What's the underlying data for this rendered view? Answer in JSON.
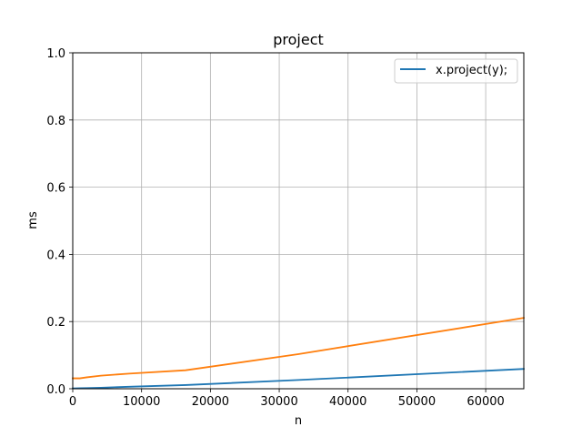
{
  "chart_data": {
    "type": "line",
    "title": "project",
    "xlabel": "n",
    "ylabel": "ms",
    "xlim": [
      0,
      65536
    ],
    "ylim": [
      0,
      1.0
    ],
    "x_ticks": [
      "0",
      "10000",
      "20000",
      "30000",
      "40000",
      "50000",
      "60000"
    ],
    "x_tick_values": [
      0,
      10000,
      20000,
      30000,
      40000,
      50000,
      60000
    ],
    "y_ticks": [
      "0.0",
      "0.2",
      "0.4",
      "0.6",
      "0.8",
      "1.0"
    ],
    "y_tick_values": [
      0,
      0.2,
      0.4,
      0.6,
      0.8,
      1.0
    ],
    "grid": true,
    "legend_position": "top-right",
    "series": [
      {
        "name": "x.project(y);",
        "color": "#1f77b4",
        "x": [
          0,
          1024,
          2048,
          4096,
          8192,
          16384,
          32768,
          65536
        ],
        "y": [
          0.001,
          0.0015,
          0.002,
          0.003,
          0.006,
          0.011,
          0.026,
          0.059
        ]
      },
      {
        "color": "#ff7f0e",
        "x": [
          0,
          1024,
          2048,
          4096,
          8192,
          16384,
          32768,
          65536
        ],
        "y": [
          0.031,
          0.031,
          0.034,
          0.039,
          0.045,
          0.055,
          0.103,
          0.211
        ]
      }
    ]
  }
}
